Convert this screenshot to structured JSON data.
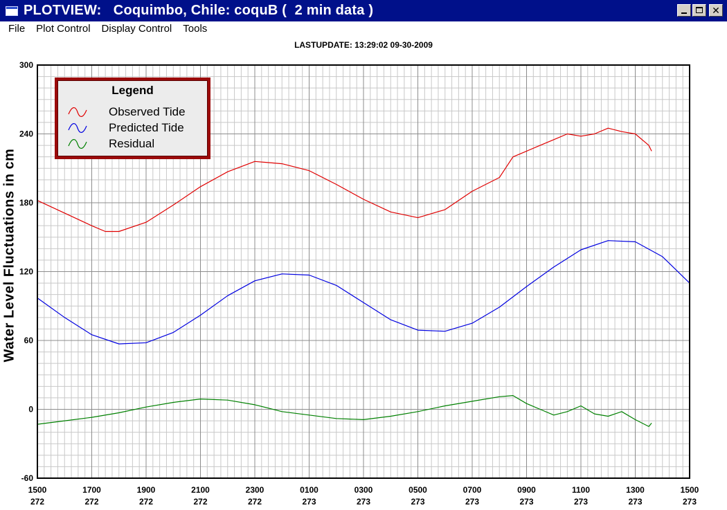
{
  "window": {
    "title": "PLOTVIEW:   Coquimbo, Chile: coquB (  2 min data )",
    "icon": "window-icon",
    "controls": [
      "minimize-icon",
      "maximize-icon",
      "close-icon"
    ]
  },
  "menu": {
    "items": [
      "File",
      "Plot Control",
      "Display Control",
      "Tools"
    ]
  },
  "plot": {
    "lastupdate": "LASTUPDATE: 13:29:02  09-30-2009",
    "ylabel": "Water Level Fluctuations in cm",
    "legend": {
      "title": "Legend",
      "entries": [
        {
          "label": "Observed Tide",
          "color": "#e00000"
        },
        {
          "label": "Predicted Tide",
          "color": "#0000e0"
        },
        {
          "label": "Residual",
          "color": "#008000"
        }
      ]
    }
  },
  "chart_data": {
    "type": "line",
    "xlabel": "",
    "ylabel": "Water Level Fluctuations in cm",
    "ylim": [
      -60,
      300
    ],
    "xlim_hours": [
      0,
      24
    ],
    "y_ticks": [
      300,
      240,
      180,
      120,
      60,
      0,
      -60
    ],
    "x_ticks": [
      {
        "time": "1500",
        "day": "272"
      },
      {
        "time": "1700",
        "day": "272"
      },
      {
        "time": "1900",
        "day": "272"
      },
      {
        "time": "2100",
        "day": "272"
      },
      {
        "time": "2300",
        "day": "272"
      },
      {
        "time": "0100",
        "day": "273"
      },
      {
        "time": "0300",
        "day": "273"
      },
      {
        "time": "0500",
        "day": "273"
      },
      {
        "time": "0700",
        "day": "273"
      },
      {
        "time": "0900",
        "day": "273"
      },
      {
        "time": "1100",
        "day": "273"
      },
      {
        "time": "1300",
        "day": "273"
      },
      {
        "time": "1500",
        "day": "273"
      }
    ],
    "grid": true,
    "legend_position": "top-left",
    "series": [
      {
        "name": "Observed Tide",
        "color": "#e00000",
        "x": [
          0,
          1,
          2,
          2.5,
          3,
          4,
          5,
          6,
          7,
          8,
          9,
          10,
          11,
          12,
          13,
          14,
          15,
          16,
          17,
          17.5,
          18,
          18.5,
          19,
          19.5,
          20,
          20.5,
          21,
          21.5,
          22,
          22.5,
          22.6
        ],
        "y": [
          182,
          171,
          160,
          155,
          155,
          163,
          178,
          194,
          207,
          216,
          214,
          208,
          196,
          183,
          172,
          167,
          174,
          190,
          202,
          220,
          225,
          230,
          235,
          240,
          238,
          240,
          245,
          242,
          240,
          230,
          225
        ]
      },
      {
        "name": "Predicted Tide",
        "color": "#0000e0",
        "x": [
          0,
          1,
          2,
          3,
          4,
          5,
          6,
          7,
          8,
          9,
          10,
          11,
          12,
          13,
          14,
          15,
          16,
          17,
          18,
          19,
          20,
          21,
          22,
          23,
          24
        ],
        "y": [
          97,
          80,
          65,
          57,
          58,
          67,
          82,
          99,
          112,
          118,
          117,
          108,
          93,
          78,
          69,
          68,
          75,
          89,
          107,
          124,
          139,
          147,
          146,
          133,
          110
        ]
      },
      {
        "name": "Residual",
        "color": "#008000",
        "x": [
          0,
          1,
          2,
          3,
          4,
          5,
          6,
          7,
          8,
          9,
          10,
          11,
          12,
          13,
          14,
          15,
          16,
          17,
          17.5,
          18,
          18.5,
          19,
          19.5,
          20,
          20.5,
          21,
          21.5,
          22,
          22.5,
          22.6
        ],
        "y": [
          -13,
          -10,
          -7,
          -3,
          2,
          6,
          9,
          8,
          4,
          -2,
          -5,
          -8,
          -9,
          -6,
          -2,
          3,
          7,
          11,
          12,
          5,
          0,
          -5,
          -2,
          3,
          -4,
          -6,
          -2,
          -9,
          -15,
          -12
        ]
      }
    ]
  }
}
